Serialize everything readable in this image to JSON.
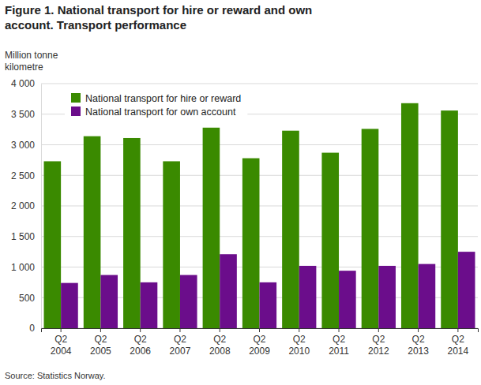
{
  "chart_data": {
    "type": "bar",
    "title": "Figure 1. National transport for hire or reward and own account. Transport performance",
    "y_label": "Million tonne kilometre",
    "source": "Source: Statistics Norway.",
    "categories": [
      "Q2 2004",
      "Q2 2005",
      "Q2 2006",
      "Q2 2007",
      "Q2 2008",
      "Q2 2009",
      "Q2 2010",
      "Q2 2011",
      "Q2 2012",
      "Q2 2013",
      "Q2 2014"
    ],
    "series": [
      {
        "name": "National transport for hire or reward",
        "color": "#3a8a00",
        "values": [
          2730,
          3140,
          3110,
          2730,
          3280,
          2780,
          3230,
          2870,
          3260,
          3680,
          3560
        ]
      },
      {
        "name": "National transport for own account",
        "color": "#6b0d8b",
        "values": [
          740,
          870,
          750,
          870,
          1210,
          750,
          1020,
          940,
          1020,
          1050,
          1250
        ]
      }
    ],
    "ylim": [
      0,
      4000
    ],
    "yticks": [
      0,
      500,
      {
        "value": 1000,
        "label": "1 000"
      },
      {
        "value": 1500,
        "label": "1 500"
      },
      {
        "value": 2000,
        "label": "2 000"
      },
      {
        "value": 2500,
        "label": "2 500"
      },
      {
        "value": 3000,
        "label": "3 000"
      },
      {
        "value": 3500,
        "label": "3 500"
      },
      {
        "value": 4000,
        "label": "4 000"
      }
    ],
    "grid": true,
    "legend": "top-left"
  }
}
